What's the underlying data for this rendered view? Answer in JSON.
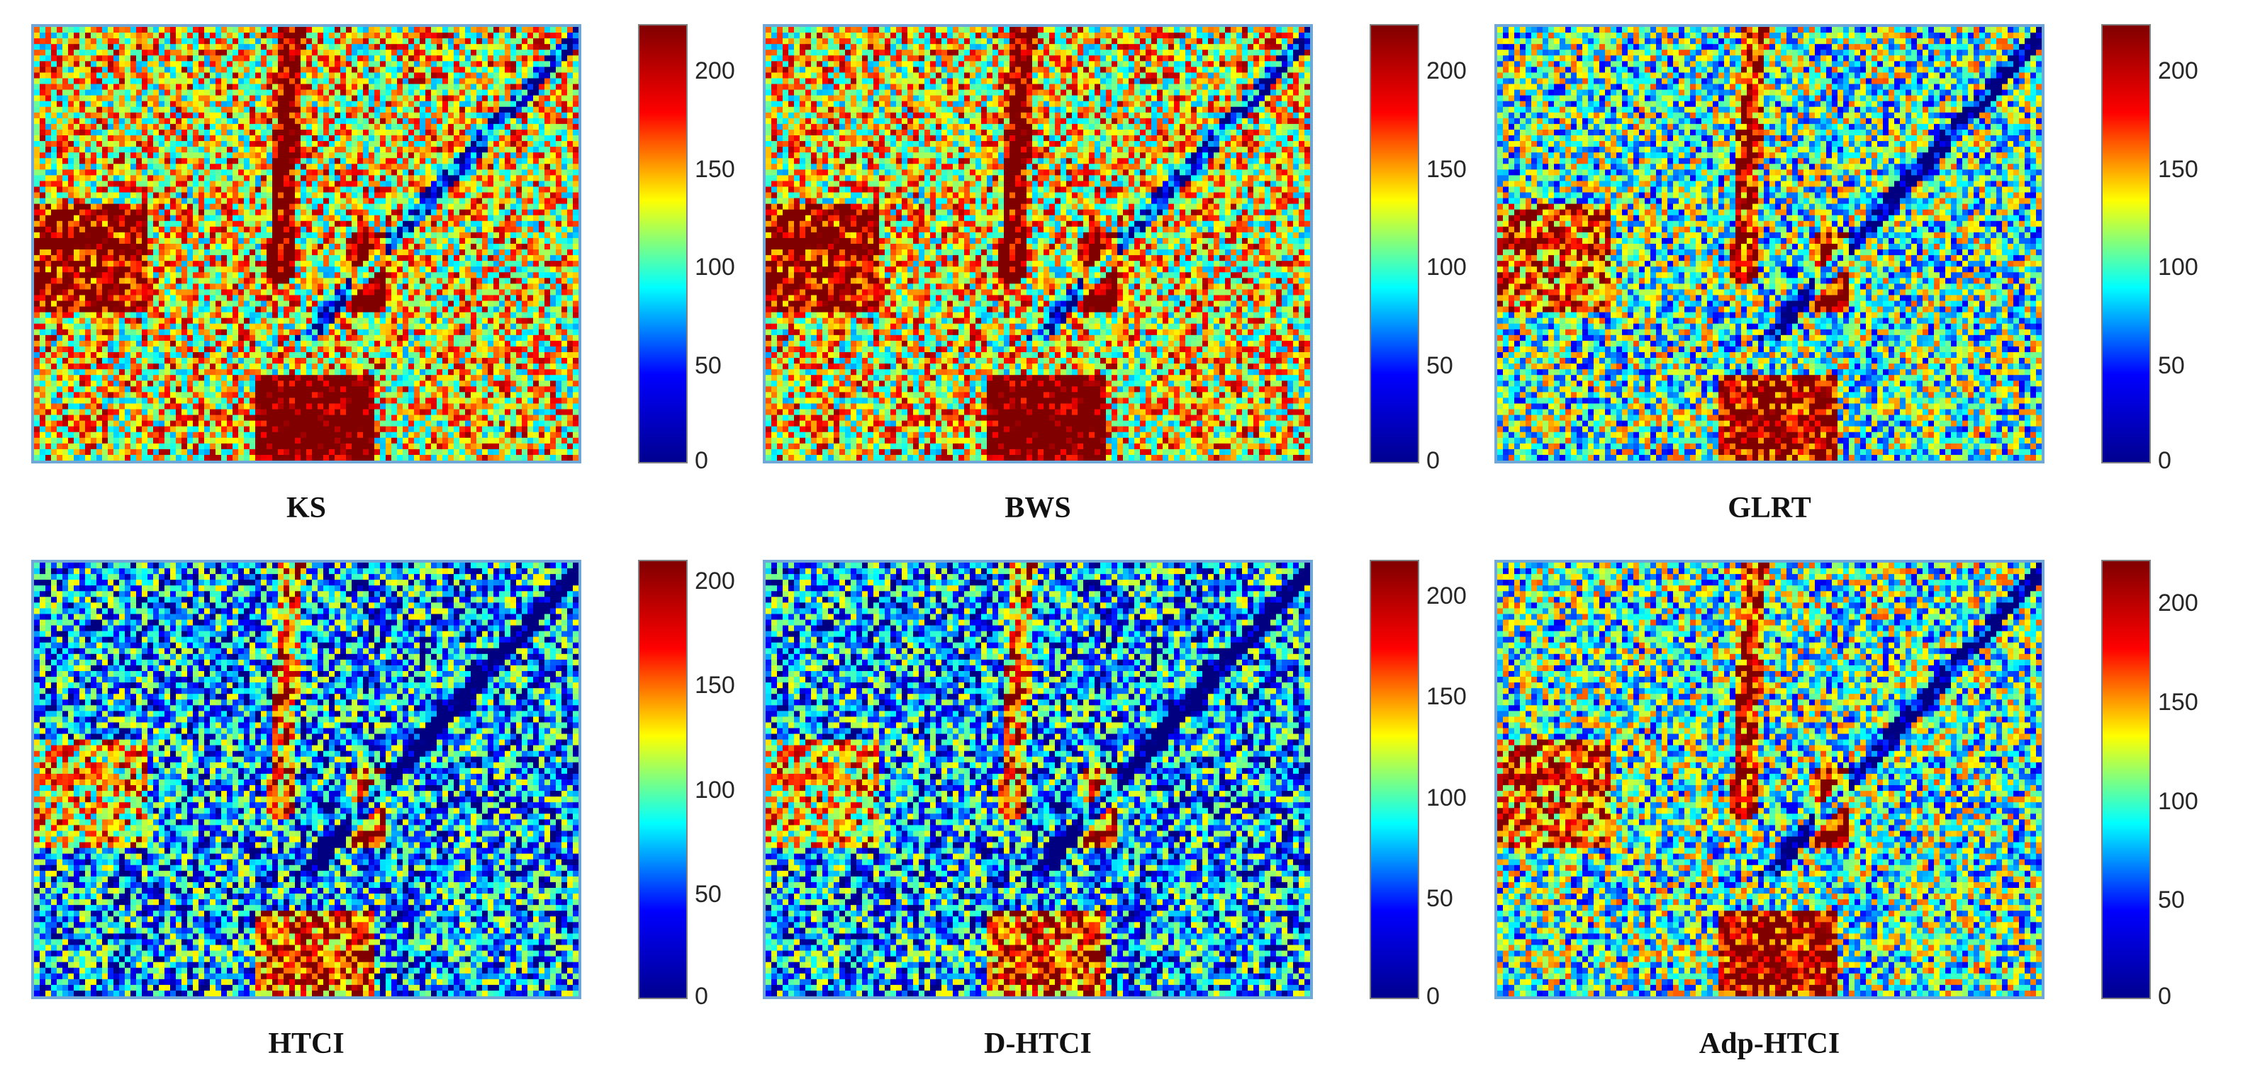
{
  "figure": {
    "colormap_name": "jet",
    "colormap_stops": [
      "#00008f",
      "#0000ff",
      "#00ffff",
      "#ffff00",
      "#ff0000",
      "#800000"
    ],
    "frame_color": "#6fa7d6",
    "panels": [
      {
        "title": "KS",
        "colorbar": {
          "min": 0,
          "max": 224,
          "ticks": [
            "0",
            "50",
            "100",
            "150",
            "200"
          ]
        },
        "value_level": "high"
      },
      {
        "title": "BWS",
        "colorbar": {
          "min": 0,
          "max": 224,
          "ticks": [
            "0",
            "50",
            "100",
            "150",
            "200"
          ]
        },
        "value_level": "high"
      },
      {
        "title": "GLRT",
        "colorbar": {
          "min": 0,
          "max": 224,
          "ticks": [
            "0",
            "50",
            "100",
            "150",
            "200"
          ]
        },
        "value_level": "medium"
      },
      {
        "title": "HTCI",
        "colorbar": {
          "min": 0,
          "max": 210,
          "ticks": [
            "0",
            "50",
            "100",
            "150",
            "200"
          ]
        },
        "value_level": "low"
      },
      {
        "title": "D-HTCI",
        "colorbar": {
          "min": 0,
          "max": 218,
          "ticks": [
            "0",
            "50",
            "100",
            "150",
            "200"
          ]
        },
        "value_level": "low"
      },
      {
        "title": "Adp-HTCI",
        "colorbar": {
          "min": 0,
          "max": 222,
          "ticks": [
            "0",
            "50",
            "100",
            "150",
            "200"
          ]
        },
        "value_level": "medium"
      }
    ]
  }
}
